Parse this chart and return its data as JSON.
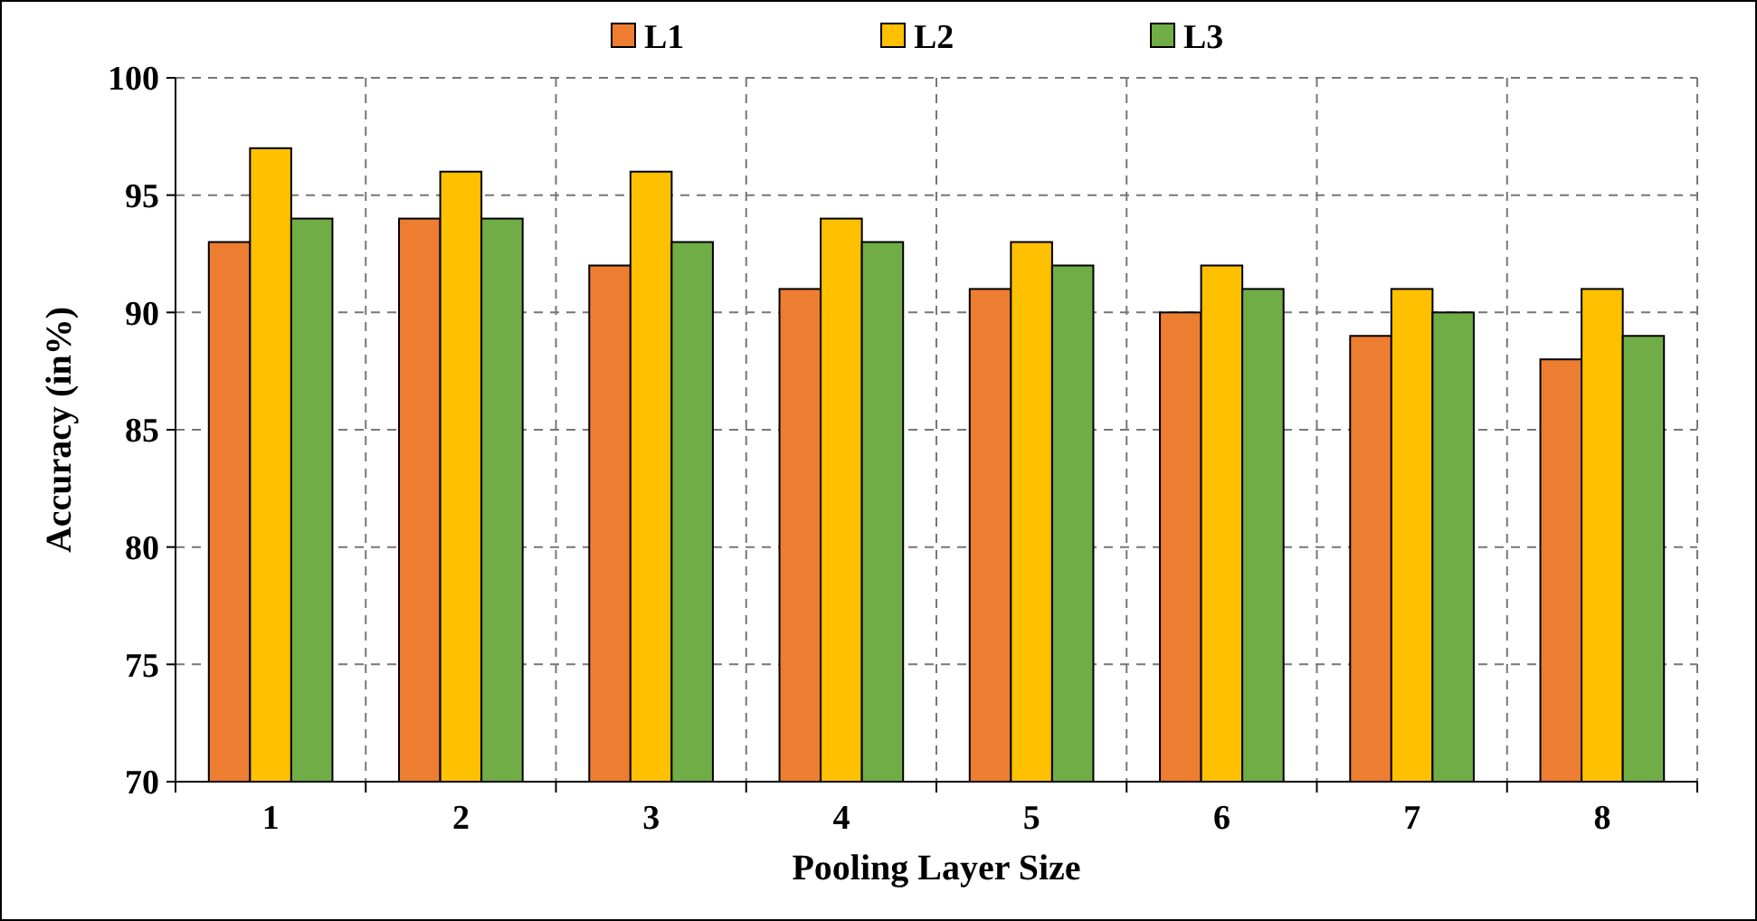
{
  "chart_data": {
    "type": "bar",
    "xlabel": "Pooling Layer Size",
    "ylabel": "Accuracy  (in%)",
    "categories": [
      "1",
      "2",
      "3",
      "4",
      "5",
      "6",
      "7",
      "8"
    ],
    "series": [
      {
        "name": "L1",
        "color": "#ed7d31",
        "values": [
          93,
          94,
          92,
          91,
          91,
          90,
          89,
          88
        ]
      },
      {
        "name": "L2",
        "color": "#ffc000",
        "values": [
          97,
          96,
          96,
          94,
          93,
          92,
          91,
          91
        ]
      },
      {
        "name": "L3",
        "color": "#70ad47",
        "values": [
          94,
          94,
          93,
          93,
          92,
          91,
          90,
          89
        ]
      }
    ],
    "ylim": [
      70,
      100
    ],
    "yticks": [
      70,
      75,
      80,
      85,
      90,
      95,
      100
    ],
    "grid": true,
    "legend": "top"
  }
}
